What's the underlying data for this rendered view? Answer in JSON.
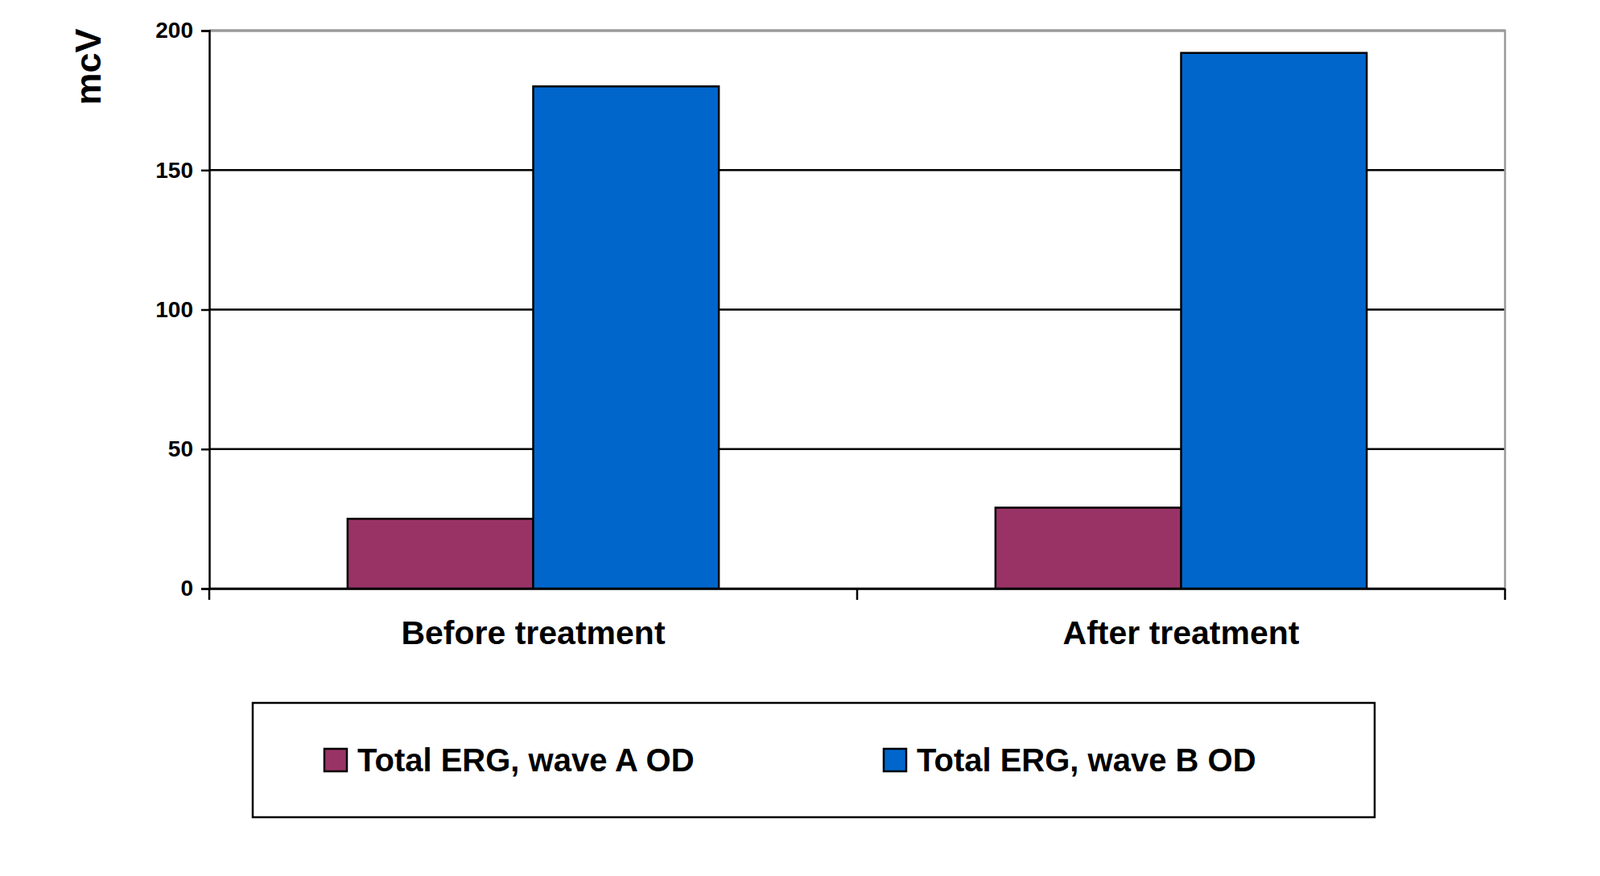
{
  "chart_data": {
    "type": "bar",
    "y_label": "mcV",
    "categories": [
      "Before treatment",
      "After treatment"
    ],
    "series": [
      {
        "name": "Total ERG, wave A OD",
        "color": "#993366",
        "values": [
          25,
          29
        ]
      },
      {
        "name": "Total ERG, wave B OD",
        "color": "#0066cc",
        "values": [
          180,
          192
        ]
      }
    ],
    "ylim": [
      0,
      200
    ],
    "yticks": [
      0,
      50,
      100,
      150,
      200
    ],
    "grid": true,
    "legend": "bottom"
  }
}
